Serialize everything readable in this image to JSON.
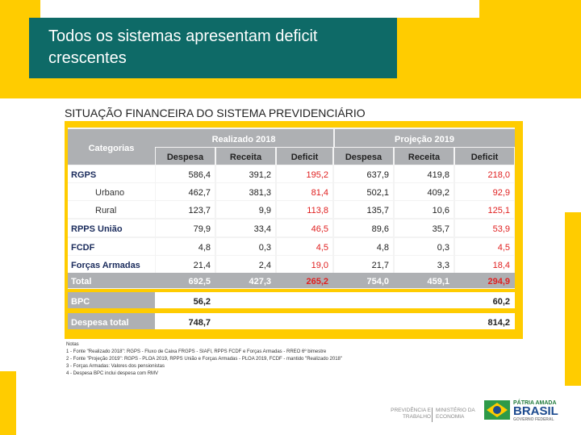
{
  "title": "Todos os sistemas apresentam deficit crescentes",
  "subtitle": "SITUAÇÃO FINANCEIRA DO SISTEMA PREVIDENCIÁRIO",
  "table": {
    "corner": "Categorias",
    "groups": [
      "Realizado 2018",
      "Projeção 2019"
    ],
    "cols": [
      "Despesa",
      "Receita",
      "Deficit",
      "Despesa",
      "Receita",
      "Deficit"
    ],
    "rows": [
      {
        "label": "RGPS",
        "bold": true,
        "values": [
          "586,4",
          "391,2",
          "195,2",
          "637,9",
          "419,8",
          "218,0"
        ]
      },
      {
        "label": "Urbano",
        "bold": false,
        "values": [
          "462,7",
          "381,3",
          "81,4",
          "502,1",
          "409,2",
          "92,9"
        ]
      },
      {
        "label": "Rural",
        "bold": false,
        "values": [
          "123,7",
          "9,9",
          "113,8",
          "135,7",
          "10,6",
          "125,1"
        ]
      },
      {
        "label": "RPPS União",
        "bold": true,
        "values": [
          "79,9",
          "33,4",
          "46,5",
          "89,6",
          "35,7",
          "53,9"
        ]
      },
      {
        "label": "FCDF",
        "bold": true,
        "values": [
          "4,8",
          "0,3",
          "4,5",
          "4,8",
          "0,3",
          "4,5"
        ]
      },
      {
        "label": "Forças Armadas",
        "bold": true,
        "values": [
          "21,4",
          "2,4",
          "19,0",
          "21,7",
          "3,3",
          "18,4"
        ]
      }
    ],
    "total": {
      "label": "Total",
      "values": [
        "692,5",
        "427,3",
        "265,2",
        "754,0",
        "459,1",
        "294,9"
      ]
    },
    "bpc": {
      "label": "BPC",
      "values": [
        "56,2",
        "60,2"
      ]
    },
    "despesa_total": {
      "label": "Despesa total",
      "values": [
        "748,7",
        "814,2"
      ]
    }
  },
  "notes": [
    "Notas",
    "1 - Fonte \"Realizado 2018\": RGPS - Fluxo de Caixa FRGPS - SIAFI, RPPS FCDF e Forças Armadas - RREO 6º bimestre",
    "2 - Fonte \"Projeção 2019\": RGPS - PLOA 2019, RPPS União e Forças Armadas - PLOA 2019, FCDF - mantido \"Realizado 2018\"",
    "3 - Forças Armadas: Valores dos pensionistas",
    "4 - Despesa BPC inclui despesa com RMV"
  ],
  "footer": {
    "ministry_left": [
      "PREVIDÊNCIA E",
      "TRABALHO"
    ],
    "ministry_right": [
      "MINISTÉRIO DA",
      "ECONOMIA"
    ],
    "brand_top": "PÁTRIA AMADA",
    "brand_main": "BRASIL",
    "brand_sub": "GOVERNO FEDERAL"
  },
  "colors": {
    "yellow": "#ffcc00",
    "teal": "#0e6a67",
    "table_header": "#aeb0b3",
    "deficit_red": "#e02020",
    "total_row": "#aeb0b3"
  }
}
